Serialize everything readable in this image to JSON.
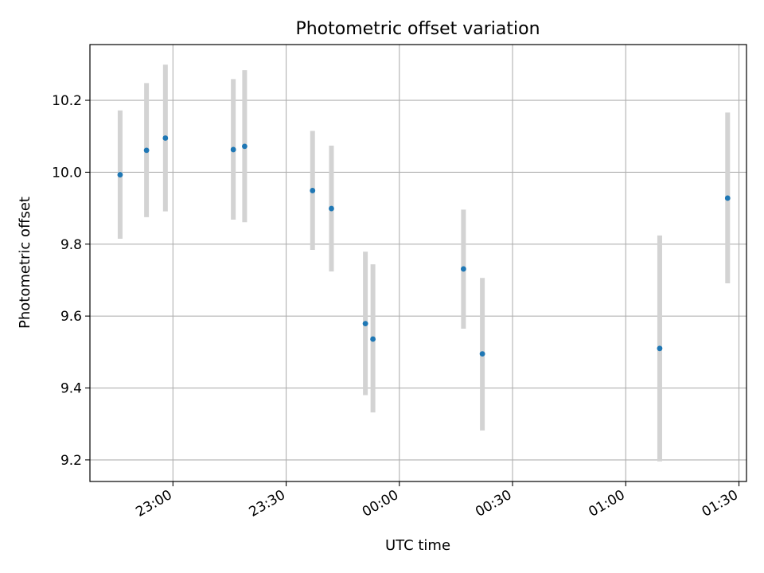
{
  "chart_data": {
    "type": "scatter",
    "title": "Photometric offset variation",
    "xlabel": "UTC time",
    "ylabel": "Photometric offset",
    "x_tick_labels": [
      "23:00",
      "23:30",
      "00:00",
      "00:30",
      "01:00",
      "01:30"
    ],
    "y_tick_labels": [
      "9.2",
      "9.4",
      "9.6",
      "9.8",
      "10.0",
      "10.2"
    ],
    "y_ticks": [
      9.2,
      9.4,
      9.6,
      9.8,
      10.0,
      10.2
    ],
    "ylim": [
      9.14,
      10.355
    ],
    "xlim": [
      "22:38",
      "01:32"
    ],
    "grid": true,
    "colors": {
      "point": "#1f77b4",
      "errorbar": "#d3d3d3",
      "grid": "#b0b0b0"
    },
    "points": [
      {
        "time": "22:46",
        "value": 9.993,
        "low": 9.815,
        "high": 10.172
      },
      {
        "time": "22:53",
        "value": 10.061,
        "low": 9.875,
        "high": 10.248
      },
      {
        "time": "22:58",
        "value": 10.095,
        "low": 9.891,
        "high": 10.299
      },
      {
        "time": "23:16",
        "value": 10.063,
        "low": 9.868,
        "high": 10.259
      },
      {
        "time": "23:19",
        "value": 10.072,
        "low": 9.861,
        "high": 10.284
      },
      {
        "time": "23:37",
        "value": 9.949,
        "low": 9.784,
        "high": 10.115
      },
      {
        "time": "23:42",
        "value": 9.899,
        "low": 9.724,
        "high": 10.074
      },
      {
        "time": "23:51",
        "value": 9.579,
        "low": 9.38,
        "high": 9.779
      },
      {
        "time": "23:53",
        "value": 9.536,
        "low": 9.332,
        "high": 9.744
      },
      {
        "time": "00:17",
        "value": 9.731,
        "low": 9.565,
        "high": 9.896
      },
      {
        "time": "00:22",
        "value": 9.495,
        "low": 9.282,
        "high": 9.706
      },
      {
        "time": "01:09",
        "value": 9.51,
        "low": 9.196,
        "high": 9.824
      },
      {
        "time": "01:27",
        "value": 9.928,
        "low": 9.691,
        "high": 10.166
      }
    ]
  }
}
